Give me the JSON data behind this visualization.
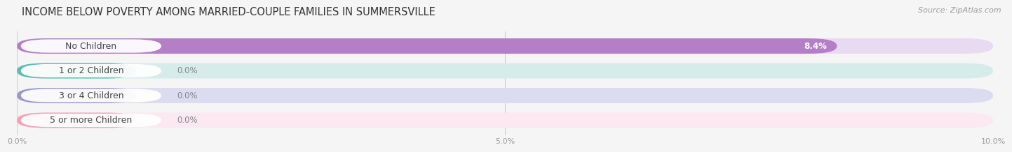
{
  "title": "INCOME BELOW POVERTY AMONG MARRIED-COUPLE FAMILIES IN SUMMERSVILLE",
  "source": "Source: ZipAtlas.com",
  "categories": [
    "No Children",
    "1 or 2 Children",
    "3 or 4 Children",
    "5 or more Children"
  ],
  "values": [
    8.4,
    0.0,
    0.0,
    0.0
  ],
  "bar_colors": [
    "#b57fc8",
    "#5cbcb5",
    "#9898d0",
    "#f5a0b8"
  ],
  "bg_colors": [
    "#e8daf0",
    "#d5eceb",
    "#dcdcf0",
    "#fce8f0"
  ],
  "label_pill_colors": [
    "#b57fc8",
    "#5cbcb5",
    "#9898d0",
    "#f5a0b8"
  ],
  "xlim": [
    0,
    10.0
  ],
  "xticks": [
    0.0,
    5.0,
    10.0
  ],
  "xtick_labels": [
    "0.0%",
    "5.0%",
    "10.0%"
  ],
  "background_color": "#f5f5f5",
  "title_fontsize": 10.5,
  "label_fontsize": 9,
  "value_fontsize": 8.5,
  "source_fontsize": 8
}
